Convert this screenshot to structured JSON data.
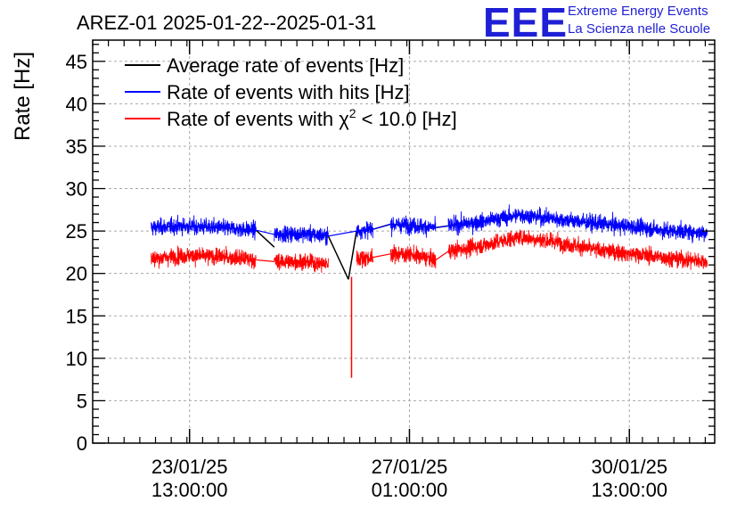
{
  "header": {
    "title": "AREZ-01 2025-01-22--2025-01-31",
    "logo": {
      "mark": "EEE",
      "line1": "Extreme Energy Events",
      "line2": "La Scienza nelle Scuole",
      "color": "#1f1fd6"
    }
  },
  "chart_data": {
    "type": "line",
    "title": "AREZ-01 2025-01-22--2025-01-31",
    "xlabel": "",
    "ylabel": "Rate [Hz]",
    "ylim": [
      0,
      47.5
    ],
    "y_ticks": [
      0,
      5,
      10,
      15,
      20,
      25,
      30,
      35,
      40,
      45
    ],
    "x_unit": "days since 2025-01-22 00:00",
    "xlim": [
      0.0,
      9.9
    ],
    "x_ticks": [
      {
        "x": 1.5417,
        "label_line1": "23/01/25",
        "label_line2": "13:00:00"
      },
      {
        "x": 5.0417,
        "label_line1": "27/01/25",
        "label_line2": "01:00:00"
      },
      {
        "x": 8.5417,
        "label_line1": "30/01/25",
        "label_line2": "13:00:00"
      }
    ],
    "grid": true,
    "legend_position": "top-left",
    "series": [
      {
        "name": "Average rate of events [Hz]",
        "color": "#000000",
        "segments": [
          {
            "x": [
              0.93,
              1.4,
              2.0,
              2.6
            ],
            "y": [
              25.4,
              25.6,
              25.4,
              25.1
            ]
          },
          {
            "x": [
              2.6,
              2.89
            ],
            "y": [
              25.1,
              23.1
            ]
          },
          {
            "x": [
              2.89,
              3.3,
              3.75
            ],
            "y": [
              24.6,
              24.7,
              24.4
            ]
          },
          {
            "x": [
              3.75,
              4.07
            ],
            "y": [
              24.4,
              19.3
            ]
          },
          {
            "x": [
              4.07,
              4.2,
              4.46
            ],
            "y": [
              19.3,
              25.0,
              25.2
            ]
          },
          {
            "x": [
              4.46,
              4.74
            ],
            "y": [
              25.2,
              25.8
            ]
          },
          {
            "x": [
              4.74,
              5.0,
              5.46
            ],
            "y": [
              25.8,
              25.7,
              25.4
            ]
          },
          {
            "x": [
              5.46,
              5.66
            ],
            "y": [
              25.4,
              25.6
            ]
          },
          {
            "x": [
              5.66,
              6.2,
              6.8,
              7.4,
              8.0,
              8.6,
              9.2,
              9.78
            ],
            "y": [
              25.6,
              26.1,
              26.9,
              26.4,
              25.9,
              25.5,
              25.0,
              24.8
            ]
          }
        ]
      },
      {
        "name": "Rate of events with hits [Hz]",
        "color": "#0000ff",
        "band_sigma": 0.9,
        "segments": [
          {
            "x": [
              0.93,
              1.4,
              2.0,
              2.6
            ],
            "y": [
              25.4,
              25.6,
              25.4,
              25.1
            ]
          },
          {
            "x": [
              2.89,
              3.3,
              3.75
            ],
            "y": [
              24.6,
              24.7,
              24.4
            ]
          },
          {
            "x": [
              4.2,
              4.46
            ],
            "y": [
              25.0,
              25.2
            ]
          },
          {
            "x": [
              4.74,
              5.0,
              5.46
            ],
            "y": [
              25.8,
              25.7,
              25.4
            ]
          },
          {
            "x": [
              5.66,
              6.2,
              6.8,
              7.4,
              8.0,
              8.6,
              9.2,
              9.78
            ],
            "y": [
              25.6,
              26.1,
              26.9,
              26.4,
              25.9,
              25.5,
              25.0,
              24.8
            ]
          }
        ]
      },
      {
        "name": "Rate of events with χ² < 10.0 [Hz]",
        "color": "#ff0000",
        "band_sigma": 0.9,
        "segments": [
          {
            "x": [
              0.93,
              1.4,
              2.0,
              2.6
            ],
            "y": [
              21.7,
              22.1,
              22.0,
              21.6
            ]
          },
          {
            "x": [
              2.89,
              3.3,
              3.75
            ],
            "y": [
              21.4,
              21.4,
              21.1
            ]
          },
          {
            "x": [
              4.2,
              4.46
            ],
            "y": [
              21.8,
              21.9
            ]
          },
          {
            "x": [
              4.74,
              5.0,
              5.46
            ],
            "y": [
              22.3,
              22.3,
              21.6
            ]
          },
          {
            "x": [
              5.66,
              6.2,
              6.8,
              7.4,
              8.0,
              8.6,
              9.2,
              9.78
            ],
            "y": [
              22.6,
              23.3,
              24.3,
              23.7,
              22.8,
              22.3,
              21.8,
              21.4
            ]
          }
        ],
        "connectors": [
          {
            "x": [
              2.6,
              2.89
            ],
            "y": [
              21.6,
              21.4
            ]
          },
          {
            "x": [
              4.46,
              4.74
            ],
            "y": [
              21.9,
              22.3
            ]
          },
          {
            "x": [
              5.46,
              5.66
            ],
            "y": [
              21.6,
              22.6
            ]
          }
        ],
        "spike": {
          "x": 4.12,
          "y_min": 7.7
        }
      }
    ]
  }
}
